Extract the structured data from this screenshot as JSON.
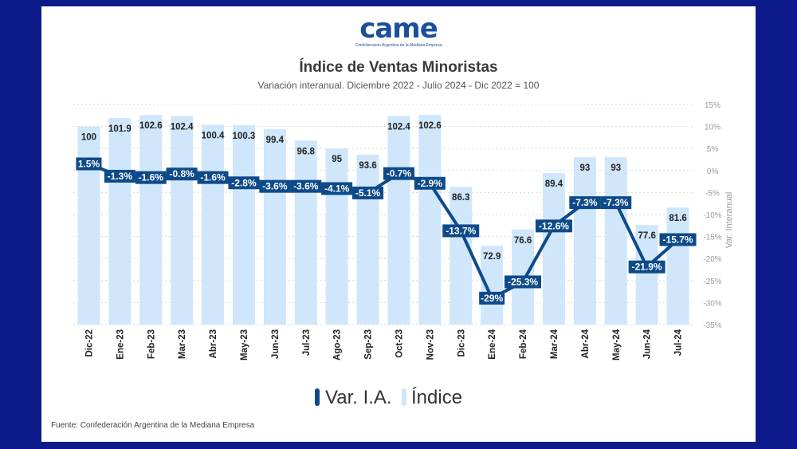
{
  "logo": {
    "text": "came",
    "subtitle": "Confederación Argentina de la Mediana Empresa"
  },
  "source": "Fuente: Confederación Argentina de la Mediana Empresa",
  "colors": {
    "bar": "#cfe6fb",
    "line": "#0d4a8a",
    "background": "#0d1a8c"
  },
  "chart_data": {
    "type": "bar",
    "title": "Índice de Ventas Minoristas",
    "subtitle": "Variación interanual. Diciembre 2022 - Julio 2024 - Dic 2022 = 100",
    "categories": [
      "Dic-22",
      "Ene-23",
      "Feb-23",
      "Mar-23",
      "Abr-23",
      "May-23",
      "Jun-23",
      "Jul-23",
      "Ago-23",
      "Sep-23",
      "Oct-23",
      "Nov-23",
      "Dic-23",
      "Ene-24",
      "Feb-24",
      "Mar-24",
      "Abr-24",
      "May-24",
      "Jun-24",
      "Jul-24"
    ],
    "series": [
      {
        "name": "Índice",
        "type": "bar",
        "axis": "left",
        "values": [
          100,
          101.9,
          102.6,
          102.4,
          100.4,
          100.3,
          99.4,
          96.8,
          95,
          93.6,
          102.4,
          102.6,
          86.3,
          72.9,
          76.6,
          89.4,
          93,
          93,
          77.6,
          81.6
        ],
        "labels": [
          "100",
          "101.9",
          "102.6",
          "102.4",
          "100.4",
          "100.3",
          "99.4",
          "96.8",
          "95",
          "93.6",
          "102.4",
          "102.6",
          "86.3",
          "72.9",
          "76.6",
          "89.4",
          "93",
          "93",
          "77.6",
          "81.6"
        ]
      },
      {
        "name": "Var. I.A.",
        "type": "line",
        "axis": "right",
        "values": [
          1.5,
          -1.3,
          -1.6,
          -0.8,
          -1.6,
          -2.8,
          -3.6,
          -3.6,
          -4.1,
          -5.1,
          -0.7,
          -2.9,
          -13.7,
          -29,
          -25.3,
          -12.6,
          -7.3,
          -7.3,
          -21.9,
          -15.7
        ],
        "labels": [
          "1.5%",
          "-1.3%",
          "-1.6%",
          "-0.8%",
          "-1.6%",
          "-2.8%",
          "-3.6%",
          "-3.6%",
          "-4.1%",
          "-5.1%",
          "-0.7%",
          "-2.9%",
          "-13.7%",
          "-29%",
          "-25.3%",
          "-12.6%",
          "-7.3%",
          "-7.3%",
          "-21.9%",
          "-15.7%"
        ]
      }
    ],
    "y2label": "Var. Interanual",
    "y2lim": [
      -35,
      15
    ],
    "y2ticks": [
      "15%",
      "10%",
      "5%",
      "0%",
      "-5%",
      "-10%",
      "-15%",
      "-20%",
      "-25%",
      "-30%",
      "-35%"
    ],
    "grid": true,
    "legend": "bottom",
    "legend_items": [
      "Var. I.A.",
      "Índice"
    ]
  }
}
